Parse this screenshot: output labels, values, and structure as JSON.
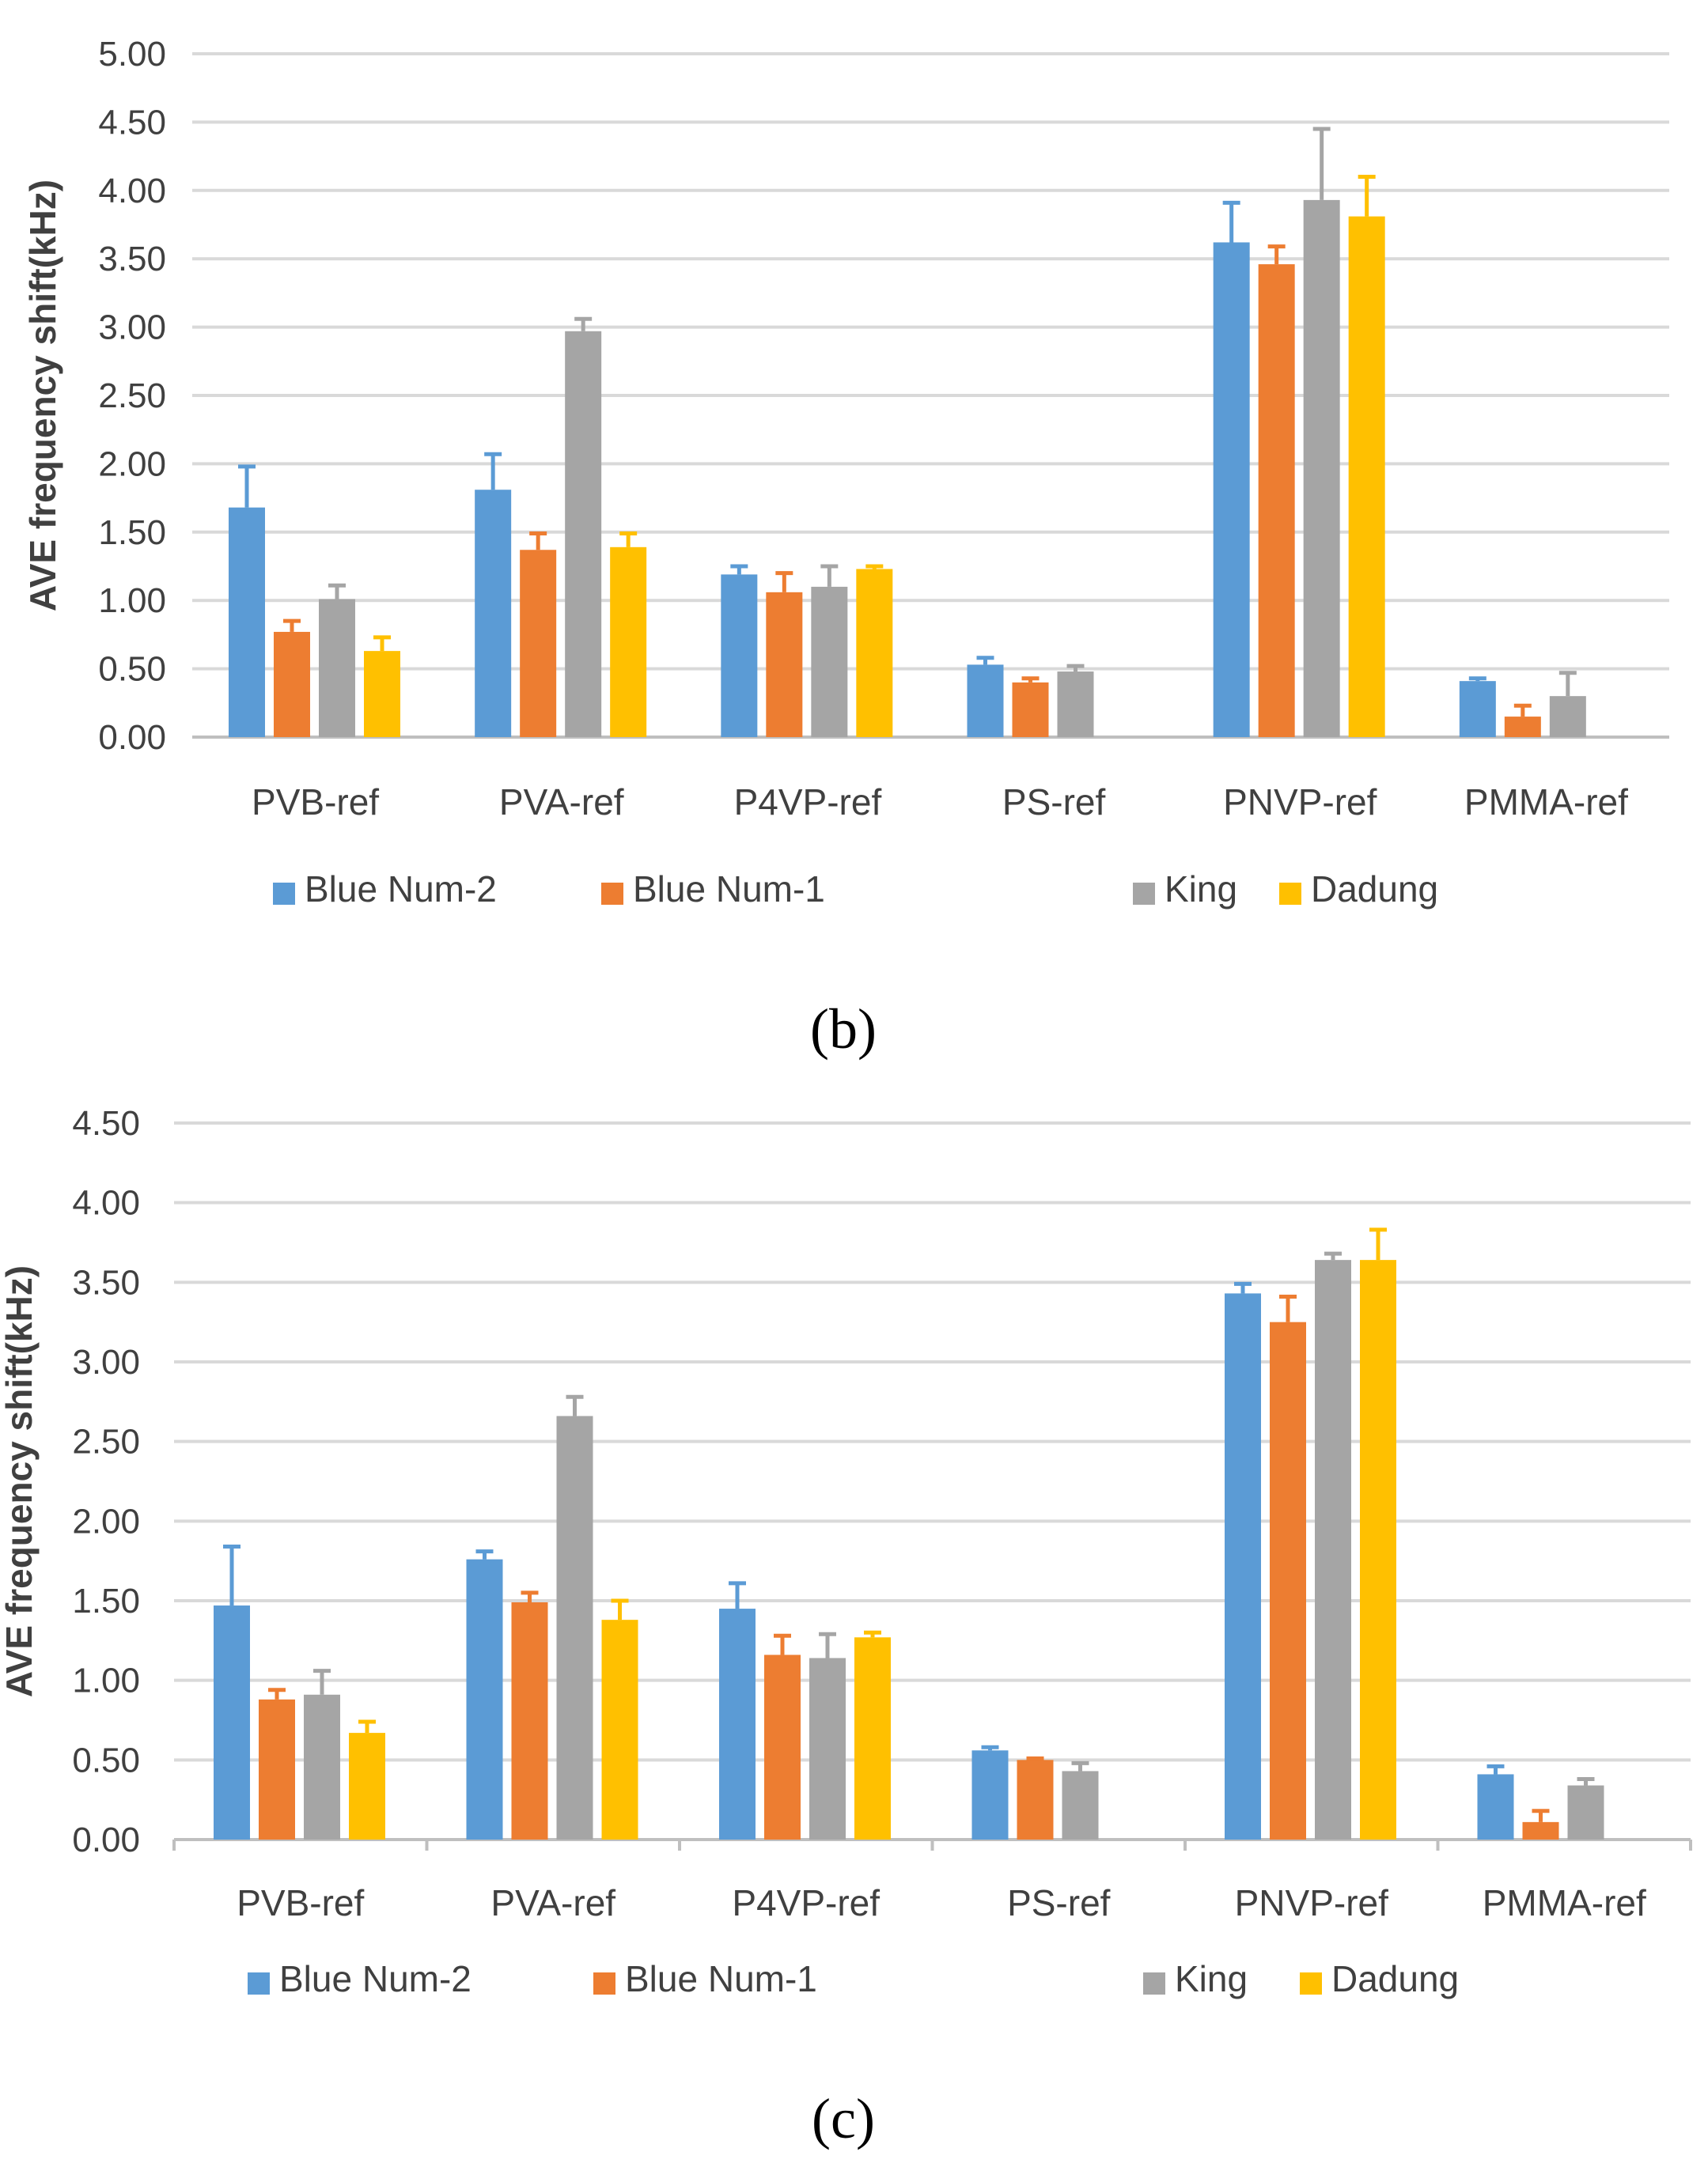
{
  "chart_data": [
    {
      "type": "bar",
      "panel_label": "(b)",
      "title": "",
      "xlabel": "",
      "ylabel": "AVE frequency shift(kHz)",
      "ylim": [
        0,
        5
      ],
      "yticks": [
        "0.00",
        "0.50",
        "1.00",
        "1.50",
        "2.00",
        "2.50",
        "3.00",
        "3.50",
        "4.00",
        "4.50",
        "5.00"
      ],
      "grid": true,
      "legend_position": "bottom",
      "categories": [
        "PVB-ref",
        "PVA-ref",
        "P4VP-ref",
        "PS-ref",
        "PNVP-ref",
        "PMMA-ref"
      ],
      "series": [
        {
          "name": "Blue Num-2",
          "color": "#5b9bd5",
          "values": [
            1.68,
            1.81,
            1.19,
            0.53,
            3.62,
            0.41
          ],
          "errors": [
            0.3,
            0.26,
            0.06,
            0.05,
            0.29,
            0.02
          ]
        },
        {
          "name": "Blue Num-1",
          "color": "#ed7d31",
          "values": [
            0.77,
            1.37,
            1.06,
            0.4,
            3.46,
            0.15
          ],
          "errors": [
            0.08,
            0.12,
            0.14,
            0.03,
            0.13,
            0.08
          ]
        },
        {
          "name": "King",
          "color": "#a5a5a5",
          "values": [
            1.01,
            2.97,
            1.1,
            0.48,
            3.93,
            0.3
          ],
          "errors": [
            0.1,
            0.09,
            0.15,
            0.04,
            0.52,
            0.17
          ]
        },
        {
          "name": "Dadung",
          "color": "#ffc000",
          "values": [
            0.63,
            1.39,
            1.23,
            0,
            3.81,
            0
          ],
          "errors": [
            0.1,
            0.1,
            0.02,
            0,
            0.29,
            0
          ]
        }
      ]
    },
    {
      "type": "bar",
      "panel_label": "(c)",
      "title": "",
      "xlabel": "",
      "ylabel": "AVE frequency shift(kHz)",
      "ylim": [
        0,
        4.5
      ],
      "yticks": [
        "0.00",
        "0.50",
        "1.00",
        "1.50",
        "2.00",
        "2.50",
        "3.00",
        "3.50",
        "4.00",
        "4.50"
      ],
      "grid": true,
      "legend_position": "bottom",
      "categories": [
        "PVB-ref",
        "PVA-ref",
        "P4VP-ref",
        "PS-ref",
        "PNVP-ref",
        "PMMA-ref"
      ],
      "series": [
        {
          "name": "Blue Num-2",
          "color": "#5b9bd5",
          "values": [
            1.47,
            1.76,
            1.45,
            0.56,
            3.43,
            0.41
          ],
          "errors": [
            0.37,
            0.05,
            0.16,
            0.02,
            0.06,
            0.05
          ]
        },
        {
          "name": "Blue Num-1",
          "color": "#ed7d31",
          "values": [
            0.88,
            1.49,
            1.16,
            0.5,
            3.25,
            0.11
          ],
          "errors": [
            0.06,
            0.06,
            0.12,
            0.01,
            0.16,
            0.07
          ]
        },
        {
          "name": "King",
          "color": "#a5a5a5",
          "values": [
            0.91,
            2.66,
            1.14,
            0.43,
            3.64,
            0.34
          ],
          "errors": [
            0.15,
            0.12,
            0.15,
            0.05,
            0.04,
            0.04
          ]
        },
        {
          "name": "Dadung",
          "color": "#ffc000",
          "values": [
            0.67,
            1.38,
            1.27,
            0,
            3.64,
            0
          ],
          "errors": [
            0.07,
            0.12,
            0.03,
            0,
            0.19,
            0
          ]
        }
      ]
    }
  ]
}
